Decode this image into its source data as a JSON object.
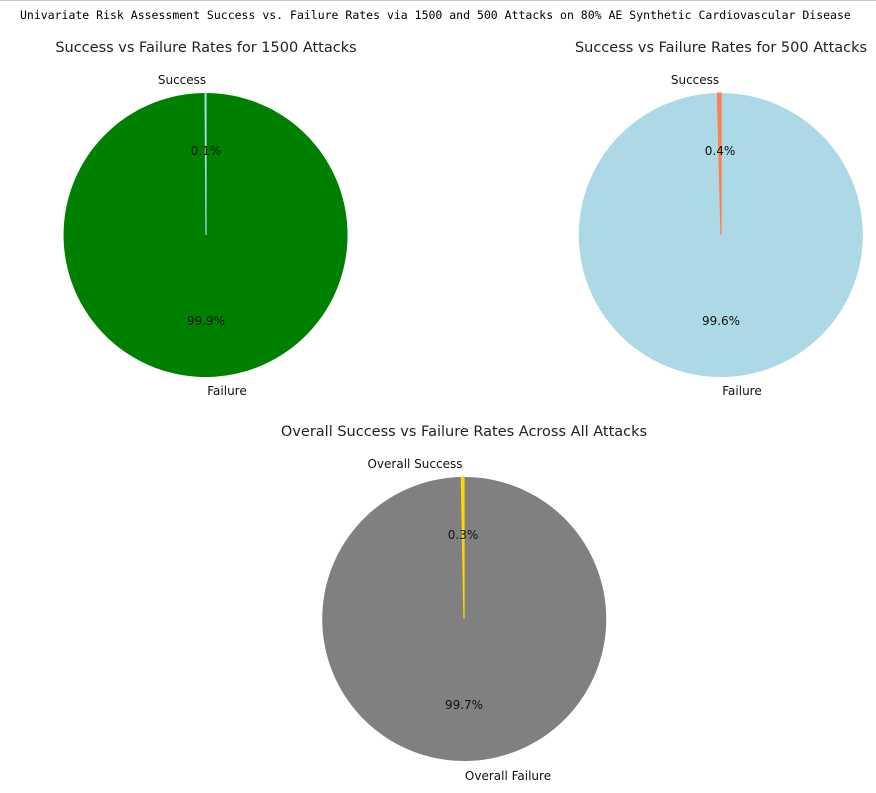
{
  "header": {
    "text": "Univariate Risk Assessment Success vs. Failure Rates via 1500 and 500 Attacks on 80% AE Synthetic Cardiovascular Disease"
  },
  "chart_data": [
    {
      "type": "pie",
      "title": "Success vs Failure Rates for 1500 Attacks",
      "labels": [
        "Success",
        "Failure"
      ],
      "values": [
        0.1,
        99.9
      ],
      "pct_labels": [
        "0.1%",
        "99.9%"
      ],
      "colors": [
        "#add8e6",
        "#008000"
      ],
      "start_angle": 90
    },
    {
      "type": "pie",
      "title": "Success vs Failure Rates for 500 Attacks",
      "labels": [
        "Success",
        "Failure"
      ],
      "values": [
        0.4,
        99.6
      ],
      "pct_labels": [
        "0.4%",
        "99.6%"
      ],
      "colors": [
        "#ff7f50",
        "#add8e6"
      ],
      "start_angle": 90
    },
    {
      "type": "pie",
      "title": "Overall Success vs Failure Rates Across All Attacks",
      "labels": [
        "Overall Success",
        "Overall Failure"
      ],
      "values": [
        0.3,
        99.7
      ],
      "pct_labels": [
        "0.3%",
        "99.7%"
      ],
      "colors": [
        "#ffd700",
        "#808080"
      ],
      "start_angle": 90
    }
  ]
}
